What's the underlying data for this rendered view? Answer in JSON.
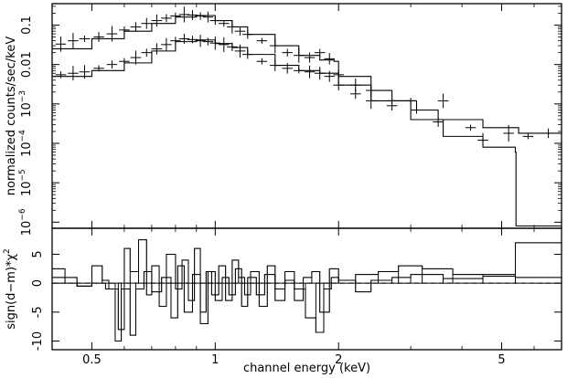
{
  "chart_data": [
    {
      "type": "scatter",
      "panel": "spectrum",
      "xscale": "log",
      "yscale": "log",
      "xlim": [
        0.4,
        7.0
      ],
      "ylim": [
        7e-07,
        0.35
      ],
      "xlabel": "",
      "ylabel": "normalized counts/sec/keV",
      "y_ticks": [
        {
          "value": 0.1,
          "label": "0.1"
        },
        {
          "value": 0.01,
          "label": "0.01"
        },
        {
          "value": 0.001,
          "label": "10",
          "exp": "−3"
        },
        {
          "value": 0.0001,
          "label": "10",
          "exp": "−4"
        },
        {
          "value": 1e-05,
          "label": "10",
          "exp": "−5"
        },
        {
          "value": 1e-06,
          "label": "10",
          "exp": "−6"
        }
      ],
      "series": [
        {
          "data": [
            [
              0.42,
              0.033
            ],
            [
              0.45,
              0.04
            ],
            [
              0.48,
              0.045
            ],
            [
              0.52,
              0.05
            ],
            [
              0.56,
              0.06
            ],
            [
              0.6,
              0.075
            ],
            [
              0.64,
              0.09
            ],
            [
              0.68,
              0.11
            ],
            [
              0.72,
              0.13
            ],
            [
              0.76,
              0.15
            ],
            [
              0.8,
              0.17
            ],
            [
              0.84,
              0.185
            ],
            [
              0.88,
              0.18
            ],
            [
              0.92,
              0.17
            ],
            [
              0.96,
              0.16
            ],
            [
              1.0,
              0.13
            ],
            [
              1.05,
              0.11
            ],
            [
              1.1,
              0.09
            ],
            [
              1.15,
              0.07
            ],
            [
              1.2,
              0.058
            ],
            [
              1.3,
              0.04
            ],
            [
              1.4,
              0.03
            ],
            [
              1.5,
              0.02
            ],
            [
              1.6,
              0.017
            ],
            [
              1.7,
              0.015
            ],
            [
              1.8,
              0.02
            ],
            [
              1.9,
              0.014
            ],
            [
              2.0,
              0.0055
            ],
            [
              2.2,
              0.003
            ],
            [
              2.4,
              0.0022
            ],
            [
              2.7,
              0.0012
            ],
            [
              3.1,
              0.0007
            ],
            [
              3.5,
              0.00035
            ],
            [
              4.2,
              0.00025
            ],
            [
              5.2,
              0.00018
            ],
            [
              6.5,
              0.00018
            ]
          ],
          "model": [
            [
              0.4,
              0.025
            ],
            [
              0.5,
              0.045
            ],
            [
              0.6,
              0.07
            ],
            [
              0.7,
              0.11
            ],
            [
              0.8,
              0.16
            ],
            [
              0.9,
              0.175
            ],
            [
              1.0,
              0.13
            ],
            [
              1.1,
              0.09
            ],
            [
              1.2,
              0.058
            ],
            [
              1.4,
              0.03
            ],
            [
              1.6,
              0.017
            ],
            [
              1.8,
              0.013
            ],
            [
              1.95,
              0.012
            ],
            [
              2.0,
              0.005
            ],
            [
              2.4,
              0.0022
            ],
            [
              2.7,
              0.0012
            ],
            [
              3.1,
              0.0007
            ],
            [
              3.5,
              0.0004
            ],
            [
              4.5,
              0.00025
            ],
            [
              5.5,
              0.00018
            ],
            [
              7.0,
              0.00018
            ]
          ]
        },
        {
          "data": [
            [
              0.42,
              0.0055
            ],
            [
              0.45,
              0.006
            ],
            [
              0.48,
              0.0065
            ],
            [
              0.52,
              0.008
            ],
            [
              0.56,
              0.01
            ],
            [
              0.6,
              0.012
            ],
            [
              0.64,
              0.015
            ],
            [
              0.68,
              0.02
            ],
            [
              0.72,
              0.025
            ],
            [
              0.76,
              0.032
            ],
            [
              0.8,
              0.04
            ],
            [
              0.84,
              0.045
            ],
            [
              0.88,
              0.043
            ],
            [
              0.92,
              0.04
            ],
            [
              0.96,
              0.038
            ],
            [
              1.0,
              0.035
            ],
            [
              1.05,
              0.032
            ],
            [
              1.1,
              0.028
            ],
            [
              1.15,
              0.022
            ],
            [
              1.2,
              0.018
            ],
            [
              1.3,
              0.012
            ],
            [
              1.4,
              0.0095
            ],
            [
              1.5,
              0.008
            ],
            [
              1.6,
              0.007
            ],
            [
              1.7,
              0.0065
            ],
            [
              1.8,
              0.006
            ],
            [
              1.9,
              0.005
            ],
            [
              2.0,
              0.003
            ],
            [
              2.2,
              0.0018
            ],
            [
              2.4,
              0.0012
            ],
            [
              2.7,
              0.0009
            ],
            [
              3.0,
              0.0012
            ],
            [
              3.6,
              0.0012
            ],
            [
              4.5,
              0.00012
            ],
            [
              5.8,
              0.00015
            ]
          ],
          "model": [
            [
              0.4,
              0.005
            ],
            [
              0.5,
              0.007
            ],
            [
              0.6,
              0.011
            ],
            [
              0.7,
              0.022
            ],
            [
              0.8,
              0.038
            ],
            [
              0.9,
              0.042
            ],
            [
              1.0,
              0.034
            ],
            [
              1.1,
              0.027
            ],
            [
              1.2,
              0.018
            ],
            [
              1.4,
              0.0095
            ],
            [
              1.6,
              0.007
            ],
            [
              1.8,
              0.006
            ],
            [
              2.0,
              0.003
            ],
            [
              2.4,
              0.0012
            ],
            [
              3.0,
              0.0004
            ],
            [
              3.6,
              0.00015
            ],
            [
              4.5,
              8e-05
            ],
            [
              5.4,
              6e-05
            ],
            [
              5.42,
              8e-07
            ],
            [
              7.0,
              8e-07
            ]
          ]
        }
      ]
    },
    {
      "type": "line",
      "panel": "residuals",
      "xscale": "log",
      "xlim": [
        0.4,
        7.0
      ],
      "ylim": [
        -11.5,
        9.5
      ],
      "xlabel": "channel energy (keV)",
      "ylabel": "sign(d−m)*χ",
      "ylabel_exp": "2",
      "y_ticks": [
        -10,
        -5,
        0,
        5
      ],
      "x_ticks": [
        {
          "value": 0.5,
          "label": "0.5"
        },
        {
          "value": 1,
          "label": "1"
        },
        {
          "value": 2,
          "label": "2"
        },
        {
          "value": 5,
          "label": "5"
        }
      ],
      "reference_line": {
        "y": 0,
        "style": "dashed"
      },
      "series": [
        {
          "steps": [
            [
              0.4,
              2.5
            ],
            [
              0.43,
              1.0
            ],
            [
              0.46,
              -0.5
            ],
            [
              0.5,
              3.0
            ],
            [
              0.53,
              0.5
            ],
            [
              0.55,
              -1.0
            ],
            [
              0.58,
              -8.0
            ],
            [
              0.6,
              6.0
            ],
            [
              0.62,
              2.0
            ],
            [
              0.65,
              7.5
            ],
            [
              0.68,
              -2.0
            ],
            [
              0.7,
              3.0
            ],
            [
              0.73,
              -4.0
            ],
            [
              0.76,
              5.0
            ],
            [
              0.8,
              -1.0
            ],
            [
              0.83,
              4.0
            ],
            [
              0.86,
              -3.0
            ],
            [
              0.89,
              6.0
            ],
            [
              0.92,
              -5.0
            ],
            [
              0.95,
              2.0
            ],
            [
              0.98,
              -2.0
            ],
            [
              1.02,
              3.0
            ],
            [
              1.06,
              -3.0
            ],
            [
              1.1,
              4.0
            ],
            [
              1.14,
              1.0
            ],
            [
              1.18,
              -2.0
            ],
            [
              1.22,
              2.0
            ],
            [
              1.28,
              -4.0
            ],
            [
              1.34,
              3.0
            ],
            [
              1.4,
              -1.0
            ],
            [
              1.48,
              2.0
            ],
            [
              1.56,
              -3.0
            ],
            [
              1.64,
              1.0
            ],
            [
              1.72,
              2.0
            ],
            [
              1.8,
              -5.0
            ],
            [
              1.9,
              2.5
            ],
            [
              2.0,
              0.5
            ],
            [
              2.2,
              1.5
            ],
            [
              2.5,
              2.0
            ],
            [
              2.8,
              3.0
            ],
            [
              3.2,
              2.5
            ],
            [
              3.8,
              1.5
            ],
            [
              4.5,
              1.2
            ],
            [
              5.4,
              1.0
            ],
            [
              7.0,
              1.0
            ]
          ]
        },
        {
          "steps": [
            [
              0.4,
              1.0
            ],
            [
              0.43,
              0.0
            ],
            [
              0.46,
              -0.5
            ],
            [
              0.5,
              0.0
            ],
            [
              0.54,
              -1.0
            ],
            [
              0.57,
              -10.0
            ],
            [
              0.59,
              -1.0
            ],
            [
              0.62,
              -9.0
            ],
            [
              0.64,
              -1.0
            ],
            [
              0.67,
              2.0
            ],
            [
              0.7,
              -1.5
            ],
            [
              0.74,
              1.0
            ],
            [
              0.78,
              -6.0
            ],
            [
              0.81,
              3.0
            ],
            [
              0.84,
              -5.0
            ],
            [
              0.88,
              1.5
            ],
            [
              0.92,
              -7.0
            ],
            [
              0.96,
              2.0
            ],
            [
              1.0,
              -3.0
            ],
            [
              1.04,
              1.0
            ],
            [
              1.08,
              -2.0
            ],
            [
              1.12,
              2.5
            ],
            [
              1.16,
              -4.0
            ],
            [
              1.2,
              1.0
            ],
            [
              1.26,
              -2.0
            ],
            [
              1.32,
              1.5
            ],
            [
              1.4,
              -3.0
            ],
            [
              1.48,
              0.5
            ],
            [
              1.56,
              -1.0
            ],
            [
              1.66,
              -6.0
            ],
            [
              1.76,
              -8.5
            ],
            [
              1.84,
              -1.0
            ],
            [
              1.92,
              1.0
            ],
            [
              2.0,
              0.5
            ],
            [
              2.2,
              -1.5
            ],
            [
              2.4,
              0.5
            ],
            [
              2.7,
              1.0
            ],
            [
              3.0,
              1.5
            ],
            [
              3.6,
              0.8
            ],
            [
              4.5,
              1.5
            ],
            [
              5.4,
              7.0
            ],
            [
              7.0,
              7.0
            ]
          ]
        }
      ]
    }
  ]
}
